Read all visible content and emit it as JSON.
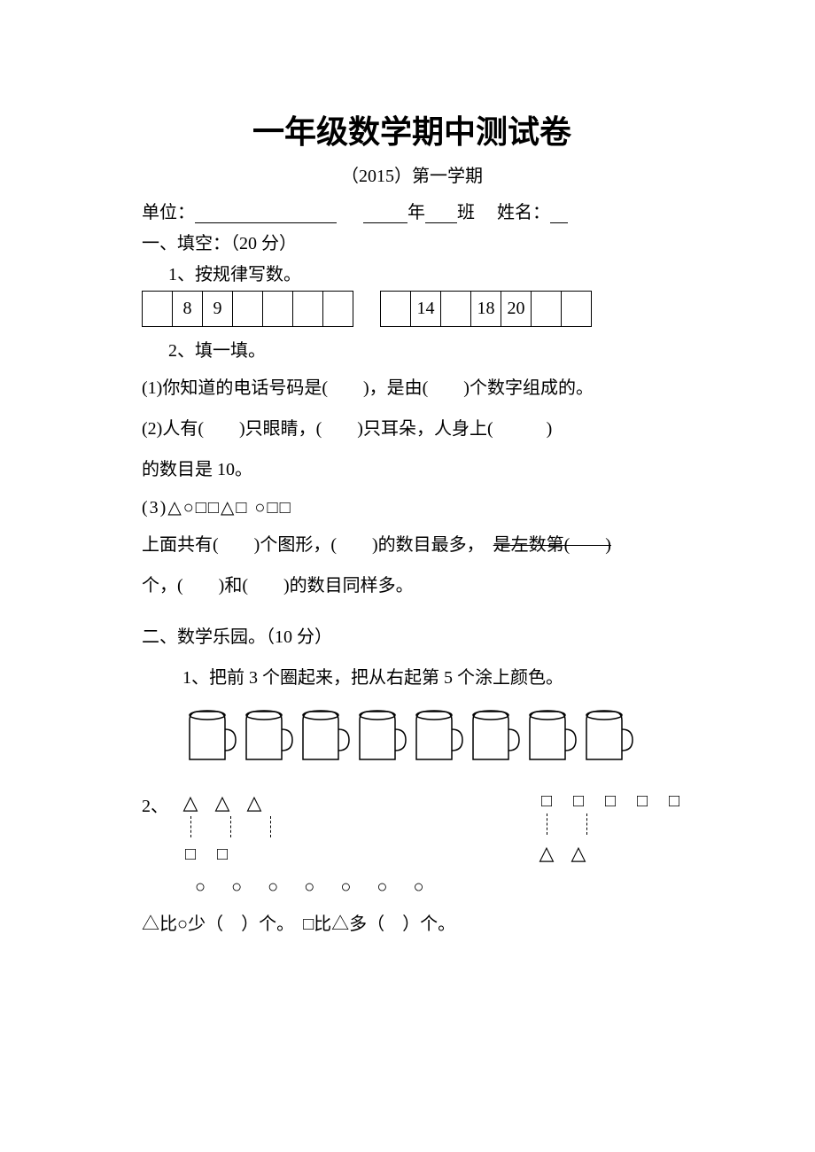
{
  "title": "一年级数学期中测试卷",
  "subtitle": "（2015）第一学期",
  "info": {
    "unit_label": "单位：",
    "year_label": "年",
    "class_label": "班",
    "name_label": "姓名："
  },
  "s1": {
    "heading": "一、填空：（20 分）",
    "q1": {
      "label": "1、按规律写数。",
      "table1": [
        "",
        "8",
        "9",
        "",
        "",
        "",
        ""
      ],
      "table2": [
        "",
        "14",
        "",
        "18",
        "20",
        "",
        ""
      ]
    },
    "q2": {
      "label": "2、填一填。",
      "l1": "(1)你知道的电话号码是(　　)，是由(　　)个数字组成的。",
      "l2": "(2)人有(　　)只眼睛，(　　)只耳朵，人身上(　　　)",
      "l2b": "的数目是 10。",
      "l3": "(3)△○□□△□ ○□□",
      "l4a": "上面共有(　　)个图形，(　　)的数目最多，",
      "l4b": "是左数第(　　)",
      "l5": "个，(　　)和(　　)的数目同样多。"
    }
  },
  "s2": {
    "heading": "二、数学乐园。（10 分）",
    "q1": "1、把前 3 个圈起来，把从右起第 5 个涂上颜色。",
    "q2": "2、",
    "compare": "△比○少（　）个。　□比△多（　）个。",
    "cup_count": 8,
    "left_triangles": 3,
    "left_squares": 2,
    "right_squares": 5,
    "right_triangles": 2,
    "circle_count": 7,
    "shapes": {
      "triangle": "△",
      "square": "□",
      "circle": "○"
    },
    "colors": {
      "stroke": "#000000",
      "bg": "#ffffff"
    }
  }
}
